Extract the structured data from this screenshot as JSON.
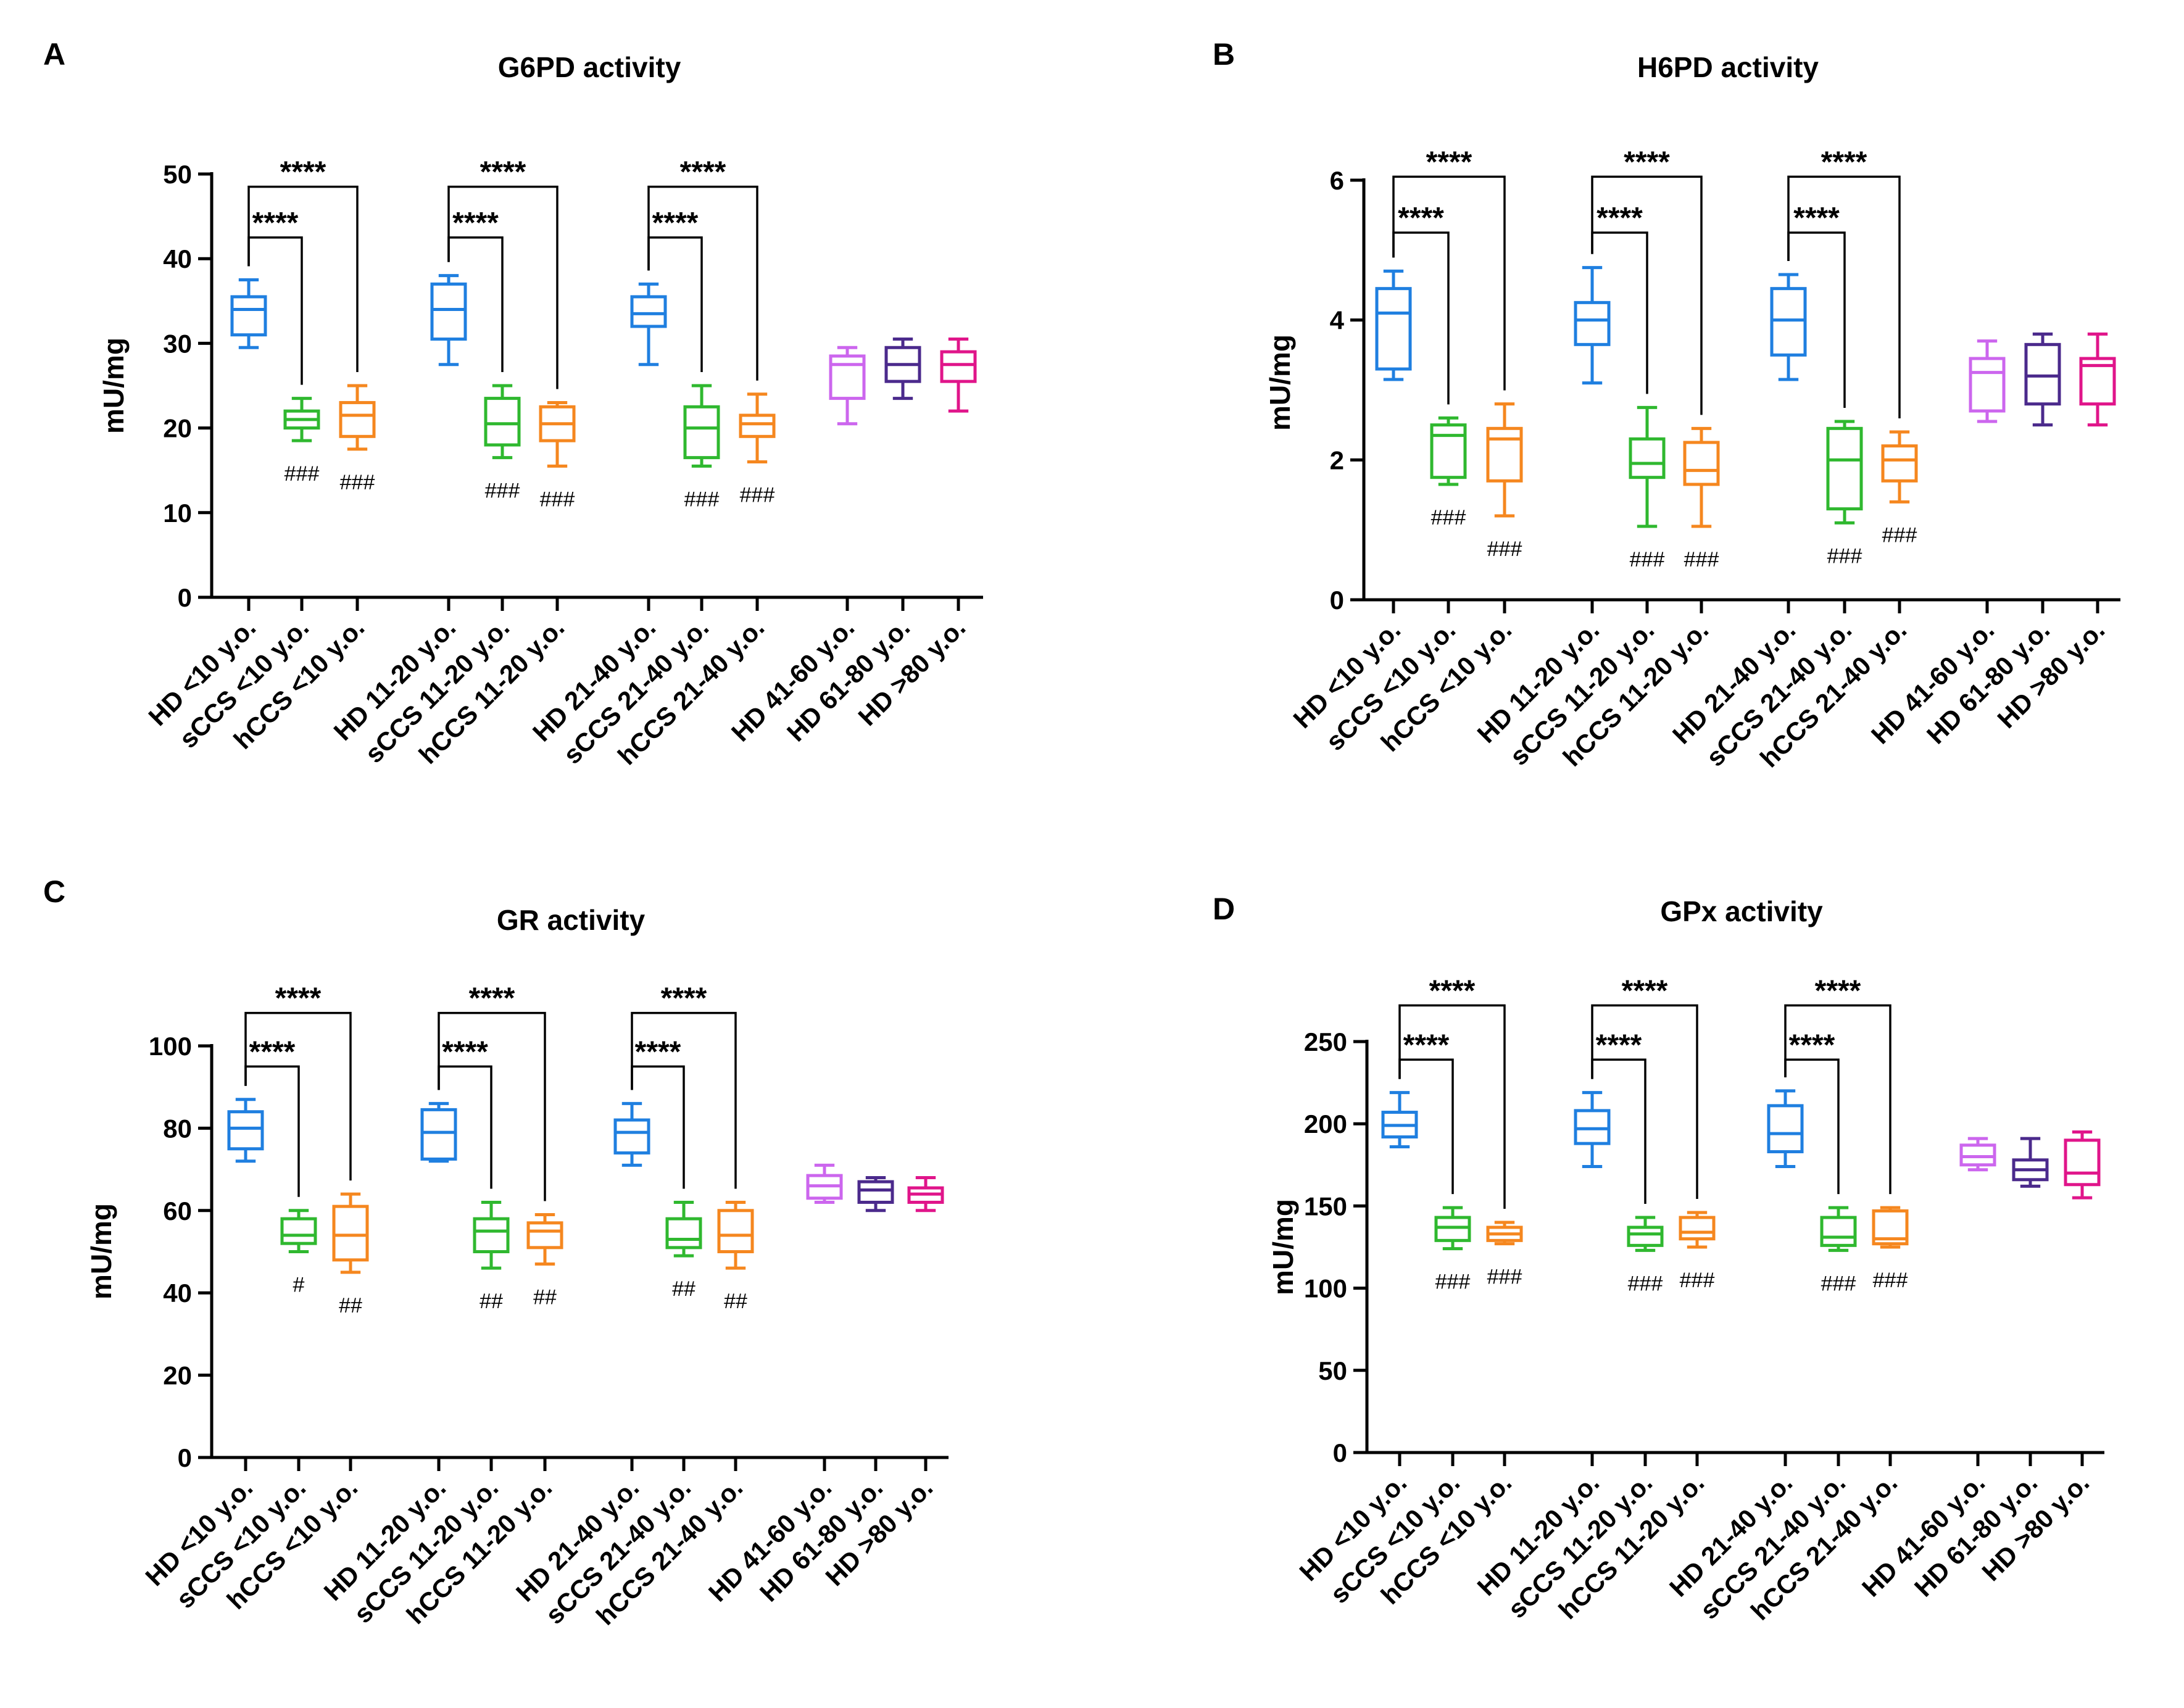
{
  "figure": {
    "panels": [
      "A",
      "B",
      "C",
      "D"
    ]
  },
  "chart_data": [
    {
      "type": "box",
      "panel": "A",
      "title": "G6PD activity",
      "xlabel": "",
      "ylabel": "mU/mg",
      "ylim": [
        0,
        50
      ],
      "yticks": [
        "0",
        "10",
        "20",
        "30",
        "40",
        "50"
      ],
      "categories": [
        "HD <10 y.o.",
        "sCCS <10 y.o.",
        "hCCS <10 y.o.",
        "HD 11-20 y.o.",
        "sCCS 11-20 y.o.",
        "hCCS 11-20 y.o.",
        "HD 21-40 y.o.",
        "sCCS 21-40 y.o.",
        "hCCS 21-40 y.o.",
        "HD 41-60 y.o.",
        "HD 61-80 y.o.",
        "HD >80 y.o."
      ],
      "colors": [
        "#1f7fe0",
        "#2fb82f",
        "#f5871f",
        "#1f7fe0",
        "#2fb82f",
        "#f5871f",
        "#1f7fe0",
        "#2fb82f",
        "#f5871f",
        "#cc66ee",
        "#4b2a8c",
        "#e0158a"
      ],
      "boxes": [
        {
          "min": 29.5,
          "q1": 31,
          "median": 34,
          "q3": 35.5,
          "max": 37.5
        },
        {
          "min": 18.5,
          "q1": 20,
          "median": 21,
          "q3": 22,
          "max": 23.5
        },
        {
          "min": 17.5,
          "q1": 19,
          "median": 21.5,
          "q3": 23,
          "max": 25
        },
        {
          "min": 27.5,
          "q1": 30.5,
          "median": 34,
          "q3": 37,
          "max": 38
        },
        {
          "min": 16.5,
          "q1": 18,
          "median": 20.5,
          "q3": 23.5,
          "max": 25
        },
        {
          "min": 15.5,
          "q1": 18.5,
          "median": 20.5,
          "q3": 22.5,
          "max": 23
        },
        {
          "min": 27.5,
          "q1": 32,
          "median": 33.5,
          "q3": 35.5,
          "max": 37
        },
        {
          "min": 15.5,
          "q1": 16.5,
          "median": 20,
          "q3": 22.5,
          "max": 25
        },
        {
          "min": 16,
          "q1": 19,
          "median": 20.5,
          "q3": 21.5,
          "max": 24
        },
        {
          "min": 20.5,
          "q1": 23.5,
          "median": 27.5,
          "q3": 28.5,
          "max": 29.5
        },
        {
          "min": 23.5,
          "q1": 25.5,
          "median": 27.5,
          "q3": 29.5,
          "max": 30.5
        },
        {
          "min": 22,
          "q1": 25.5,
          "median": 27.5,
          "q3": 29,
          "max": 30.5
        }
      ],
      "brackets": [
        {
          "from": 0,
          "to": 1,
          "y": 42.5,
          "label": "****"
        },
        {
          "from": 0,
          "to": 2,
          "y": 48.5,
          "label": "****"
        },
        {
          "from": 3,
          "to": 4,
          "y": 42.5,
          "label": "****"
        },
        {
          "from": 3,
          "to": 5,
          "y": 48.5,
          "label": "****"
        },
        {
          "from": 6,
          "to": 7,
          "y": 42.5,
          "label": "****"
        },
        {
          "from": 6,
          "to": 8,
          "y": 48.5,
          "label": "****"
        }
      ],
      "annotations": [
        {
          "index": 1,
          "text": "###"
        },
        {
          "index": 2,
          "text": "###"
        },
        {
          "index": 4,
          "text": "###"
        },
        {
          "index": 5,
          "text": "###"
        },
        {
          "index": 7,
          "text": "###"
        },
        {
          "index": 8,
          "text": "###"
        }
      ]
    },
    {
      "type": "box",
      "panel": "B",
      "title": "H6PD activity",
      "xlabel": "",
      "ylabel": "mU/mg",
      "ylim": [
        0,
        6
      ],
      "yticks": [
        "0",
        "2",
        "4",
        "6"
      ],
      "categories": [
        "HD <10 y.o.",
        "sCCS <10 y.o.",
        "hCCS <10 y.o.",
        "HD 11-20 y.o.",
        "sCCS 11-20 y.o.",
        "hCCS 11-20 y.o.",
        "HD 21-40 y.o.",
        "sCCS 21-40 y.o.",
        "hCCS 21-40 y.o.",
        "HD 41-60 y.o.",
        "HD 61-80 y.o.",
        "HD >80 y.o."
      ],
      "colors": [
        "#1f7fe0",
        "#2fb82f",
        "#f5871f",
        "#1f7fe0",
        "#2fb82f",
        "#f5871f",
        "#1f7fe0",
        "#2fb82f",
        "#f5871f",
        "#cc66ee",
        "#4b2a8c",
        "#e0158a"
      ],
      "boxes": [
        {
          "min": 3.15,
          "q1": 3.3,
          "median": 4.1,
          "q3": 4.45,
          "max": 4.7
        },
        {
          "min": 1.65,
          "q1": 1.75,
          "median": 2.35,
          "q3": 2.5,
          "max": 2.6
        },
        {
          "min": 1.2,
          "q1": 1.7,
          "median": 2.3,
          "q3": 2.45,
          "max": 2.8
        },
        {
          "min": 3.1,
          "q1": 3.65,
          "median": 4.0,
          "q3": 4.25,
          "max": 4.75
        },
        {
          "min": 1.05,
          "q1": 1.75,
          "median": 1.95,
          "q3": 2.3,
          "max": 2.75
        },
        {
          "min": 1.05,
          "q1": 1.65,
          "median": 1.85,
          "q3": 2.25,
          "max": 2.45
        },
        {
          "min": 3.15,
          "q1": 3.5,
          "median": 4.0,
          "q3": 4.45,
          "max": 4.65
        },
        {
          "min": 1.1,
          "q1": 1.3,
          "median": 2.0,
          "q3": 2.45,
          "max": 2.55
        },
        {
          "min": 1.4,
          "q1": 1.7,
          "median": 2.0,
          "q3": 2.2,
          "max": 2.4
        },
        {
          "min": 2.55,
          "q1": 2.7,
          "median": 3.25,
          "q3": 3.45,
          "max": 3.7
        },
        {
          "min": 2.5,
          "q1": 2.8,
          "median": 3.2,
          "q3": 3.65,
          "max": 3.8
        },
        {
          "min": 2.5,
          "q1": 2.8,
          "median": 3.35,
          "q3": 3.45,
          "max": 3.8
        }
      ],
      "brackets": [
        {
          "from": 0,
          "to": 1,
          "y": 5.25,
          "label": "****"
        },
        {
          "from": 0,
          "to": 2,
          "y": 6.05,
          "label": "****"
        },
        {
          "from": 3,
          "to": 4,
          "y": 5.25,
          "label": "****"
        },
        {
          "from": 3,
          "to": 5,
          "y": 6.05,
          "label": "****"
        },
        {
          "from": 6,
          "to": 7,
          "y": 5.25,
          "label": "****"
        },
        {
          "from": 6,
          "to": 8,
          "y": 6.05,
          "label": "****"
        }
      ],
      "annotations": [
        {
          "index": 1,
          "text": "###"
        },
        {
          "index": 2,
          "text": "###"
        },
        {
          "index": 4,
          "text": "###"
        },
        {
          "index": 5,
          "text": "###"
        },
        {
          "index": 7,
          "text": "###"
        },
        {
          "index": 8,
          "text": "###"
        }
      ]
    },
    {
      "type": "box",
      "panel": "C",
      "title": "GR activity",
      "xlabel": "",
      "ylabel": "mU/mg",
      "ylim": [
        0,
        100
      ],
      "yticks": [
        "0",
        "20",
        "40",
        "60",
        "80",
        "100"
      ],
      "categories": [
        "HD <10 y.o.",
        "sCCS <10 y.o.",
        "hCCS <10 y.o.",
        "HD 11-20 y.o.",
        "sCCS 11-20 y.o.",
        "hCCS 11-20 y.o.",
        "HD 21-40 y.o.",
        "sCCS 21-40 y.o.",
        "hCCS 21-40 y.o.",
        "HD 41-60 y.o.",
        "HD 61-80 y.o.",
        "HD >80 y.o."
      ],
      "colors": [
        "#1f7fe0",
        "#2fb82f",
        "#f5871f",
        "#1f7fe0",
        "#2fb82f",
        "#f5871f",
        "#1f7fe0",
        "#2fb82f",
        "#f5871f",
        "#cc66ee",
        "#4b2a8c",
        "#e0158a"
      ],
      "boxes": [
        {
          "min": 72,
          "q1": 75,
          "median": 80,
          "q3": 84,
          "max": 87
        },
        {
          "min": 50,
          "q1": 52,
          "median": 54,
          "q3": 58,
          "max": 60
        },
        {
          "min": 45,
          "q1": 48,
          "median": 54,
          "q3": 61,
          "max": 64
        },
        {
          "min": 72,
          "q1": 72.5,
          "median": 79,
          "q3": 84.5,
          "max": 86
        },
        {
          "min": 46,
          "q1": 50,
          "median": 55,
          "q3": 58,
          "max": 62
        },
        {
          "min": 47,
          "q1": 51,
          "median": 55,
          "q3": 57,
          "max": 59
        },
        {
          "min": 71,
          "q1": 74,
          "median": 79,
          "q3": 82,
          "max": 86
        },
        {
          "min": 49,
          "q1": 51,
          "median": 53,
          "q3": 58,
          "max": 62
        },
        {
          "min": 46,
          "q1": 50,
          "median": 54,
          "q3": 60,
          "max": 62
        },
        {
          "min": 62,
          "q1": 63,
          "median": 66,
          "q3": 68.5,
          "max": 71
        },
        {
          "min": 60,
          "q1": 62,
          "median": 65,
          "q3": 67,
          "max": 68
        },
        {
          "min": 60,
          "q1": 62,
          "median": 64,
          "q3": 65.5,
          "max": 68
        }
      ],
      "brackets": [
        {
          "from": 0,
          "to": 1,
          "y": 95,
          "label": "****"
        },
        {
          "from": 0,
          "to": 2,
          "y": 108,
          "label": "****"
        },
        {
          "from": 3,
          "to": 4,
          "y": 95,
          "label": "****"
        },
        {
          "from": 3,
          "to": 5,
          "y": 108,
          "label": "****"
        },
        {
          "from": 6,
          "to": 7,
          "y": 95,
          "label": "****"
        },
        {
          "from": 6,
          "to": 8,
          "y": 108,
          "label": "****"
        }
      ],
      "annotations": [
        {
          "index": 1,
          "text": "#"
        },
        {
          "index": 2,
          "text": "##"
        },
        {
          "index": 4,
          "text": "##"
        },
        {
          "index": 5,
          "text": "##"
        },
        {
          "index": 7,
          "text": "##"
        },
        {
          "index": 8,
          "text": "##"
        }
      ]
    },
    {
      "type": "box",
      "panel": "D",
      "title": "GPx activity",
      "xlabel": "",
      "ylabel": "mU/mg",
      "ylim": [
        0,
        250
      ],
      "yticks": [
        "0",
        "50",
        "100",
        "150",
        "200",
        "250"
      ],
      "categories": [
        "HD <10 y.o.",
        "sCCS <10 y.o.",
        "hCCS <10 y.o.",
        "HD 11-20 y.o.",
        "sCCS 11-20 y.o.",
        "hCCS 11-20 y.o.",
        "HD 21-40 y.o.",
        "sCCS 21-40 y.o.",
        "hCCS 21-40 y.o.",
        "HD 41-60 y.o.",
        "HD 61-80 y.o.",
        "HD >80 y.o."
      ],
      "colors": [
        "#1f7fe0",
        "#2fb82f",
        "#f5871f",
        "#1f7fe0",
        "#2fb82f",
        "#f5871f",
        "#1f7fe0",
        "#2fb82f",
        "#f5871f",
        "#cc66ee",
        "#4b2a8c",
        "#e0158a"
      ],
      "boxes": [
        {
          "min": 186,
          "q1": 192,
          "median": 199,
          "q3": 207,
          "max": 219
        },
        {
          "min": 124,
          "q1": 129,
          "median": 137,
          "q3": 143,
          "max": 149
        },
        {
          "min": 127,
          "q1": 129,
          "median": 133,
          "q3": 137,
          "max": 140
        },
        {
          "min": 174,
          "q1": 188,
          "median": 197,
          "q3": 208,
          "max": 219
        },
        {
          "min": 123,
          "q1": 126,
          "median": 133,
          "q3": 137,
          "max": 143
        },
        {
          "min": 125,
          "q1": 130,
          "median": 134,
          "q3": 143,
          "max": 146
        },
        {
          "min": 174,
          "q1": 183,
          "median": 194,
          "q3": 211,
          "max": 220
        },
        {
          "min": 123,
          "q1": 126,
          "median": 131,
          "q3": 143,
          "max": 149
        },
        {
          "min": 125,
          "q1": 127,
          "median": 130,
          "q3": 147,
          "max": 149
        },
        {
          "min": 172,
          "q1": 175,
          "median": 180,
          "q3": 187,
          "max": 191
        },
        {
          "min": 162,
          "q1": 166,
          "median": 172,
          "q3": 178,
          "max": 191
        },
        {
          "min": 155,
          "q1": 163,
          "median": 170,
          "q3": 190,
          "max": 195
        }
      ],
      "brackets": [
        {
          "from": 0,
          "to": 1,
          "y": 239,
          "label": "****"
        },
        {
          "from": 0,
          "to": 2,
          "y": 272,
          "label": "****"
        },
        {
          "from": 3,
          "to": 4,
          "y": 239,
          "label": "****"
        },
        {
          "from": 3,
          "to": 5,
          "y": 272,
          "label": "****"
        },
        {
          "from": 6,
          "to": 7,
          "y": 239,
          "label": "****"
        },
        {
          "from": 6,
          "to": 8,
          "y": 272,
          "label": "****"
        }
      ],
      "annotations": [
        {
          "index": 1,
          "text": "###"
        },
        {
          "index": 2,
          "text": "###"
        },
        {
          "index": 4,
          "text": "###"
        },
        {
          "index": 5,
          "text": "###"
        },
        {
          "index": 7,
          "text": "###"
        },
        {
          "index": 8,
          "text": "###"
        }
      ]
    }
  ]
}
